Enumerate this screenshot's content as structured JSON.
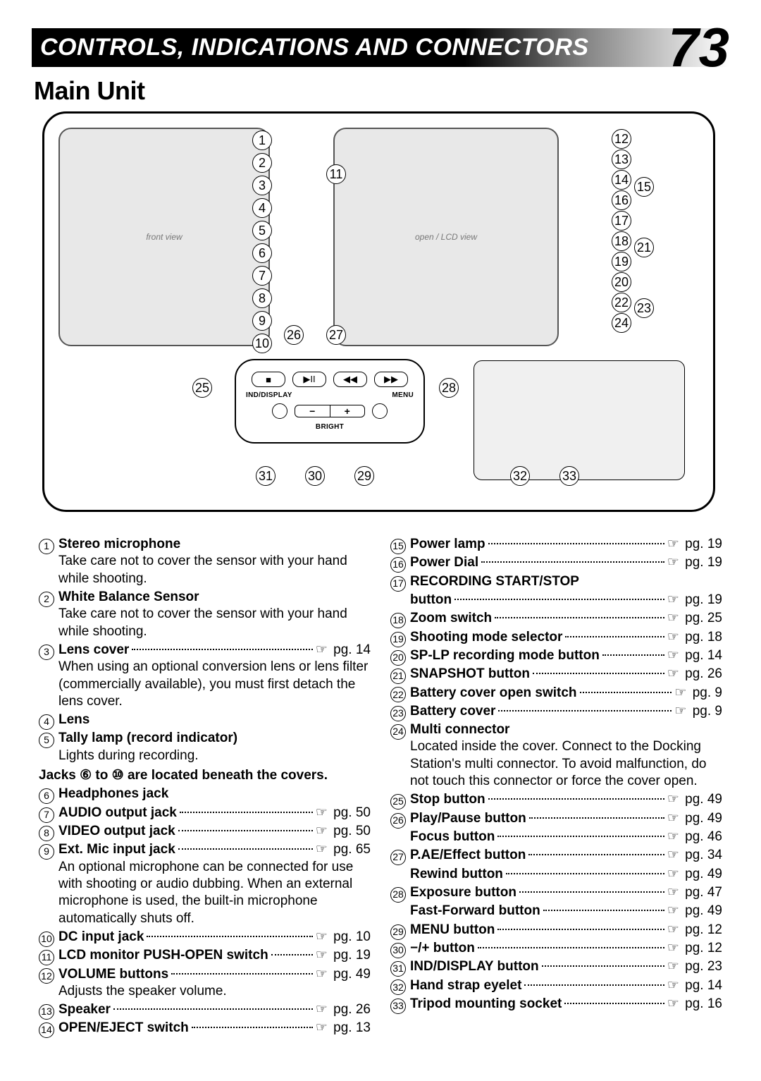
{
  "header": {
    "title": "CONTROLS, INDICATIONS AND CONNECTORS",
    "page": "73",
    "subtitle": "Main Unit"
  },
  "panel": {
    "ind_display": "IND/DISPLAY",
    "menu": "MENU",
    "bright": "BRIGHT",
    "minus": "−",
    "plus": "+",
    "stop": "■",
    "play_pause": "▶II",
    "rewind": "◀◀",
    "ff": "▶▶"
  },
  "callout_groups": {
    "left_col": [
      "1",
      "2",
      "3",
      "4",
      "5",
      "6",
      "7",
      "8",
      "9",
      "10"
    ],
    "right_col": [
      "12",
      "13",
      "14",
      "15",
      "16",
      "17",
      "18",
      "19",
      "20",
      "21",
      "22",
      "23",
      "24"
    ],
    "panel_top": [
      "26",
      "27"
    ],
    "panel_side_left": "25",
    "panel_side_right": "28",
    "panel_bottom": [
      "31",
      "30",
      "29"
    ],
    "row11": "11",
    "bottom_right": [
      "32",
      "33"
    ]
  },
  "left_entries": [
    {
      "n": "1",
      "bold": "Stereo microphone",
      "desc": "Take care not to cover the sensor with your hand while shooting."
    },
    {
      "n": "2",
      "bold": "White Balance Sensor",
      "desc": "Take care not to cover the sensor with your hand while shooting."
    },
    {
      "n": "3",
      "bold": "Lens cover",
      "pg": "pg. 14",
      "desc": "When using an optional conversion lens or lens filter (commercially available), you must first detach the lens cover."
    },
    {
      "n": "4",
      "bold": "Lens"
    },
    {
      "n": "5",
      "bold": "Tally lamp (record indicator)",
      "desc": "Lights during recording."
    },
    {
      "note": "Jacks ⑥ to ⑩ are located beneath the covers."
    },
    {
      "n": "6",
      "bold": "Headphones jack"
    },
    {
      "n": "7",
      "bold": "AUDIO output jack",
      "pg": "pg. 50"
    },
    {
      "n": "8",
      "bold": "VIDEO output jack",
      "pg": "pg. 50"
    },
    {
      "n": "9",
      "bold": "Ext. Mic input jack",
      "pg": "pg. 65",
      "desc": "An optional microphone can be connected for use with shooting or audio dubbing. When an external microphone is used, the built-in microphone automatically shuts off."
    },
    {
      "n": "10",
      "bold": "DC input jack",
      "pg": "pg. 10"
    },
    {
      "n": "11",
      "bold": "LCD monitor PUSH-OPEN switch",
      "pg": "pg. 19"
    },
    {
      "n": "12",
      "bold": "VOLUME buttons",
      "pg": "pg. 49",
      "desc": "Adjusts the speaker volume."
    },
    {
      "n": "13",
      "bold": "Speaker",
      "pg": "pg. 26"
    },
    {
      "n": "14",
      "bold": "OPEN/EJECT switch",
      "pg": "pg. 13"
    }
  ],
  "right_entries": [
    {
      "n": "15",
      "bold": "Power lamp",
      "pg": "pg. 19"
    },
    {
      "n": "16",
      "bold": "Power Dial",
      "pg": "pg. 19"
    },
    {
      "n": "17",
      "bold": "RECORDING START/STOP"
    },
    {
      "cont_bold": "button",
      "pg": "pg. 19"
    },
    {
      "n": "18",
      "bold": "Zoom switch",
      "pg": "pg. 25"
    },
    {
      "n": "19",
      "bold": "Shooting mode selector",
      "pg": "pg. 18"
    },
    {
      "n": "20",
      "bold": "SP-LP recording mode button",
      "pg": "pg. 14"
    },
    {
      "n": "21",
      "bold": "SNAPSHOT button",
      "pg": "pg. 26"
    },
    {
      "n": "22",
      "bold": "Battery cover open switch",
      "pg": "pg. 9"
    },
    {
      "n": "23",
      "bold": "Battery cover",
      "pg": "pg. 9"
    },
    {
      "n": "24",
      "bold": "Multi connector",
      "desc": "Located inside the cover. Connect to the Docking Station's multi connector. To avoid malfunction, do not touch this connector or force the cover open."
    },
    {
      "n": "25",
      "bold": "Stop button",
      "pg": "pg. 49"
    },
    {
      "n": "26",
      "bold": "Play/Pause button",
      "pg": "pg. 49"
    },
    {
      "sub_bold": "Focus button",
      "pg": "pg. 46"
    },
    {
      "n": "27",
      "bold": "P.AE/Effect button",
      "pg": "pg. 34"
    },
    {
      "sub_bold": "Rewind button",
      "pg": "pg. 49"
    },
    {
      "n": "28",
      "bold": "Exposure button",
      "pg": "pg. 47"
    },
    {
      "sub_bold": "Fast-Forward button",
      "pg": "pg. 49"
    },
    {
      "n": "29",
      "bold": "MENU button",
      "pg": "pg. 12"
    },
    {
      "n": "30",
      "bold": "−/+ button",
      "pg": "pg. 12"
    },
    {
      "n": "31",
      "bold": "IND/DISPLAY button",
      "pg": "pg. 23"
    },
    {
      "n": "32",
      "bold": "Hand strap eyelet",
      "pg": "pg. 14"
    },
    {
      "n": "33",
      "bold": "Tripod mounting socket",
      "pg": "pg. 16"
    }
  ]
}
